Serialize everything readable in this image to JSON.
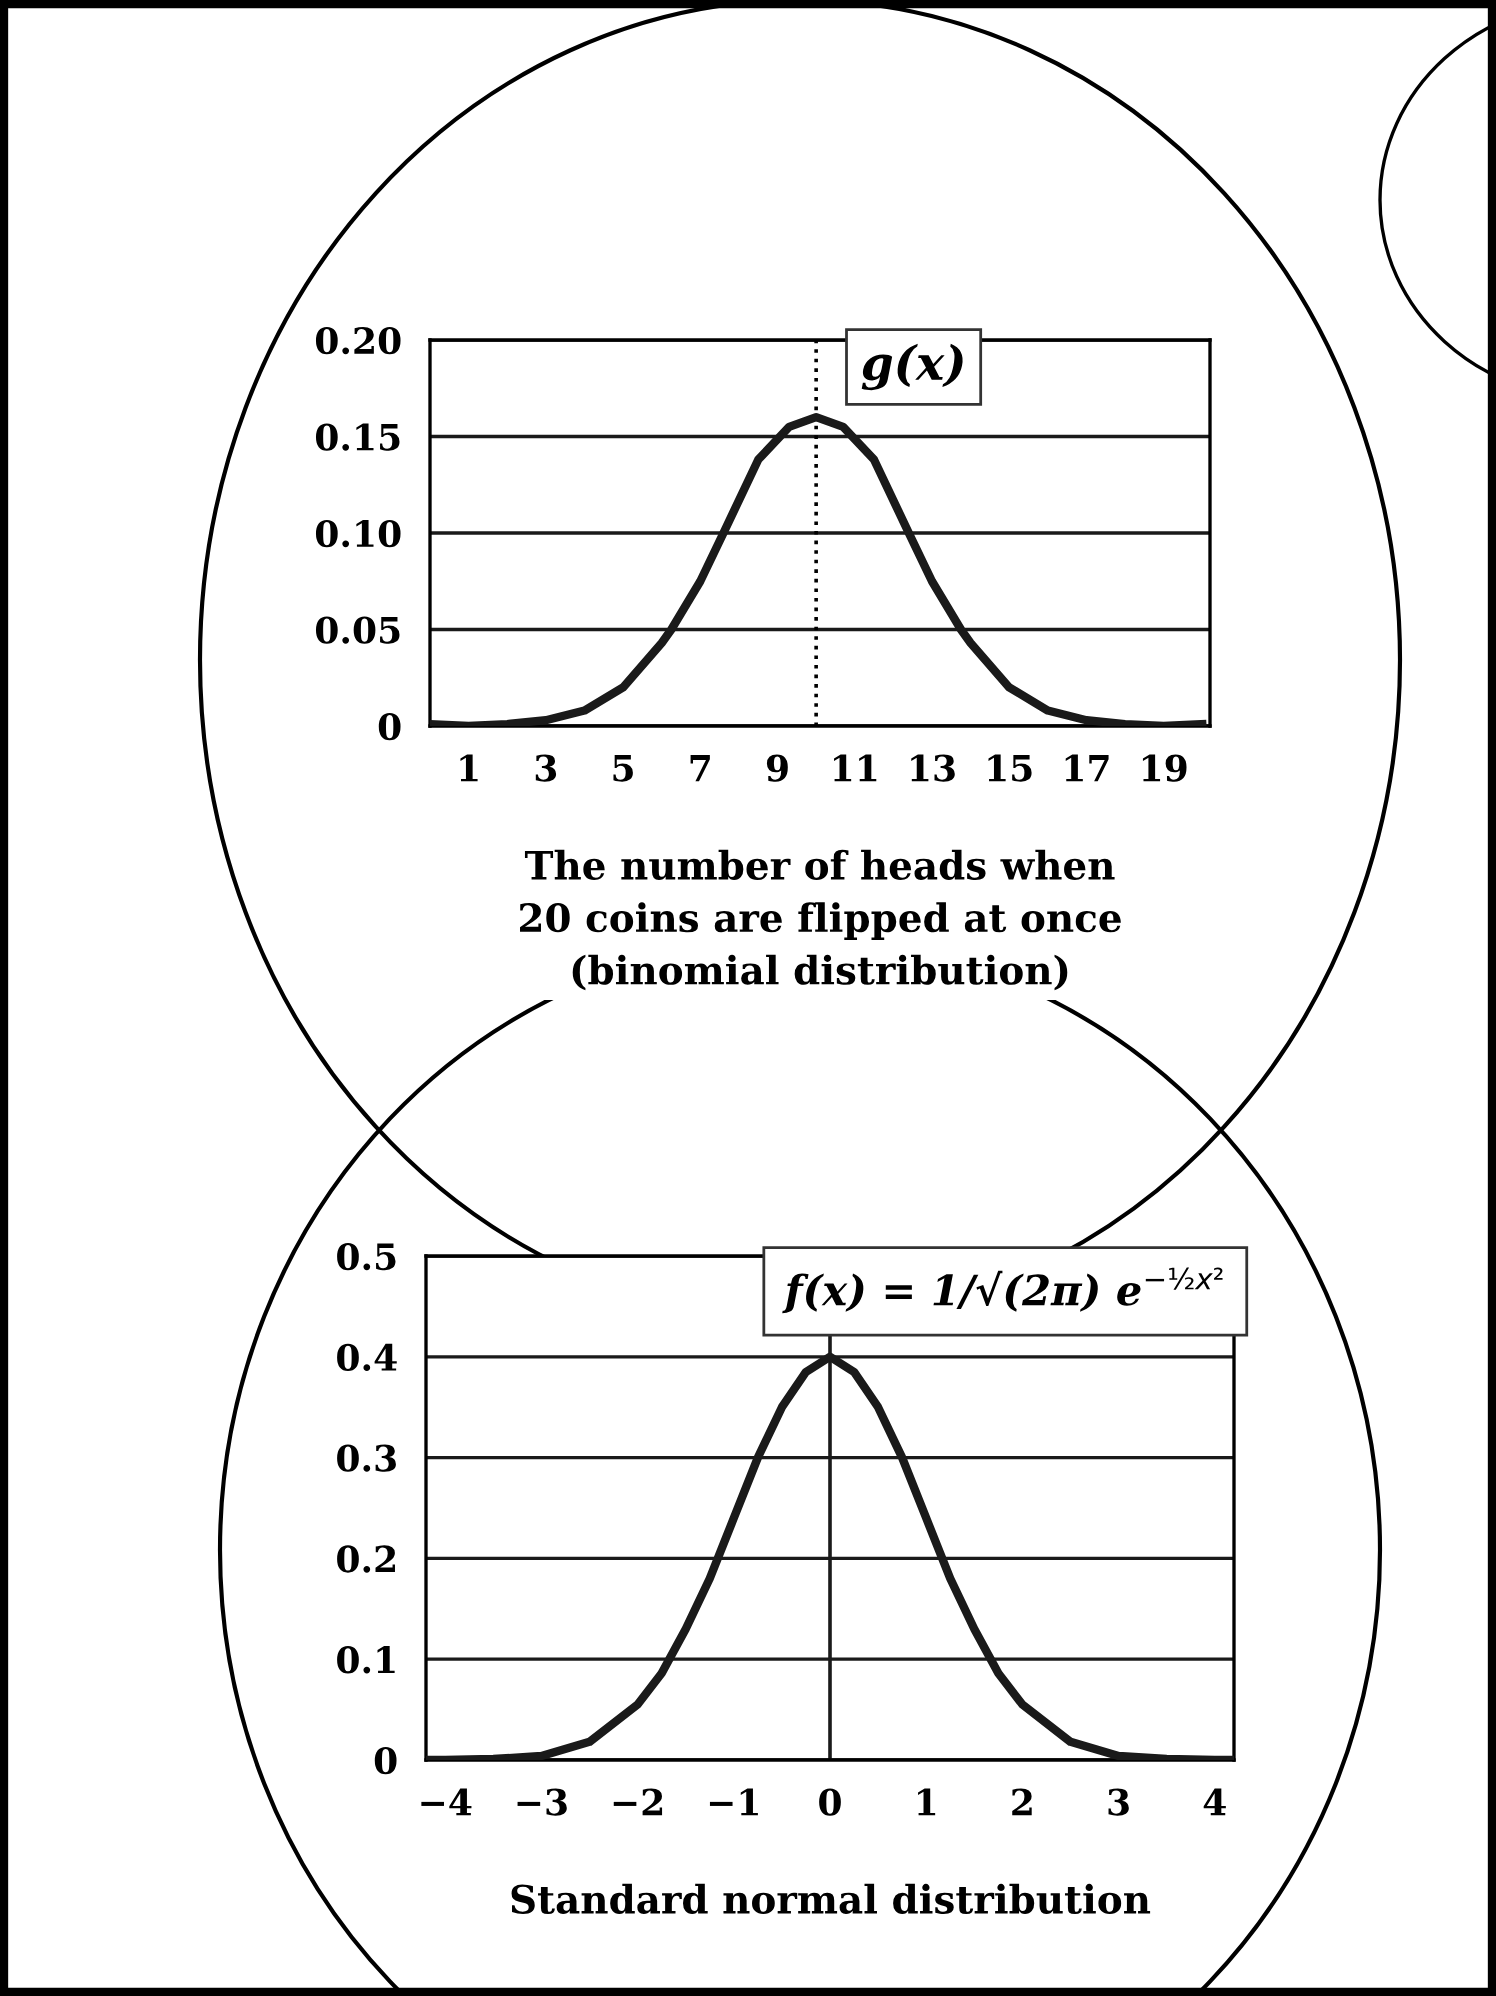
{
  "chart_data": [
    {
      "type": "line",
      "xlabel": "The number of heads when\n20 coins are flipped at once\n(binomial distribution)",
      "annotations": [
        "g(x)"
      ],
      "series": [
        {
          "color": "#1a1a1a",
          "x": [
            0,
            1,
            2,
            3,
            4,
            5,
            6,
            6.25,
            7,
            7.6,
            8.5,
            9.3,
            10,
            10.7,
            11.5,
            12.4,
            13,
            13.75,
            14,
            15,
            16,
            17,
            18,
            19,
            20
          ],
          "values": [
            0.001,
            0,
            0.001,
            0.003,
            0.008,
            0.02,
            0.043,
            0.05,
            0.075,
            0.1,
            0.138,
            0.155,
            0.16,
            0.155,
            0.138,
            0.1,
            0.075,
            0.05,
            0.043,
            0.02,
            0.008,
            0.003,
            0.001,
            0,
            0.001
          ]
        }
      ],
      "xlim": [
        0,
        20.2
      ],
      "xticks": [
        1,
        3,
        5,
        7,
        9,
        11,
        13,
        15,
        17,
        19
      ],
      "ylim": [
        0,
        0.2
      ],
      "yticks": [
        0,
        0.05,
        {
          "value": 0.1,
          "label": "0.10"
        },
        0.15,
        {
          "value": 0.2,
          "label": "0.20"
        }
      ],
      "ref_lines": [
        {
          "axis": "x",
          "value": 10,
          "color": "#000000",
          "line_style": "dotted"
        }
      ],
      "grid": "y",
      "legend": false,
      "marker": "none",
      "line_style": "solid"
    },
    {
      "type": "line",
      "xlabel": "Standard normal distribution",
      "annotations": [
        "f(x) = 1/√(2π) e$^{−½x²}$"
      ],
      "series": [
        {
          "color": "#1a1a1a",
          "x": [
            -4.2,
            -4,
            -3.5,
            -3,
            -2.5,
            -2,
            -1.75,
            -1.5,
            -1.25,
            -1,
            -0.75,
            -0.5,
            -0.25,
            0,
            0.25,
            0.5,
            0.75,
            1,
            1.25,
            1.5,
            1.75,
            2,
            2.5,
            3,
            3.5,
            4,
            4.2
          ],
          "values": [
            0,
            0,
            0.001,
            0.004,
            0.018,
            0.055,
            0.086,
            0.13,
            0.18,
            0.24,
            0.3,
            0.35,
            0.385,
            0.4,
            0.385,
            0.35,
            0.3,
            0.24,
            0.18,
            0.13,
            0.086,
            0.055,
            0.018,
            0.004,
            0.001,
            0,
            0
          ]
        }
      ],
      "xlim": [
        -4.2,
        4.2
      ],
      "xticks": [
        {
          "value": -4,
          "label": "−4"
        },
        {
          "value": -3,
          "label": "−3"
        },
        {
          "value": -2,
          "label": "−2"
        },
        {
          "value": -1,
          "label": "−1"
        },
        0,
        1,
        2,
        3,
        4
      ],
      "ylim": [
        0,
        0.5
      ],
      "yticks": [
        0,
        0.1,
        0.2,
        0.3,
        0.4,
        0.5
      ],
      "ref_lines": [
        {
          "axis": "x",
          "value": 0,
          "color": "#1a1a1a",
          "line_style": "solid"
        }
      ],
      "grid": "y",
      "legend": false,
      "marker": "none",
      "line_style": "solid"
    }
  ]
}
